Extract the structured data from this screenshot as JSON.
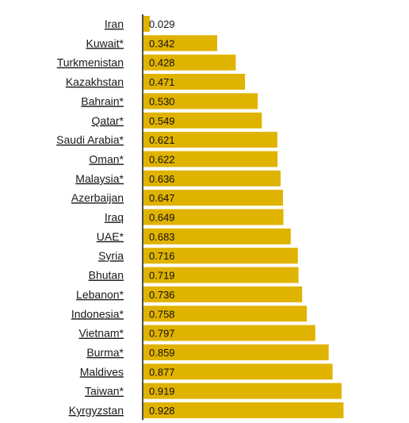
{
  "colors": {
    "bar": "#E0B300",
    "axis": "#111111",
    "text": "#1a1a1a"
  },
  "chart_data": {
    "type": "bar",
    "orientation": "horizontal",
    "categories": [
      "Iran",
      "Kuwait*",
      "Turkmenistan",
      "Kazakhstan",
      "Bahrain*",
      "Qatar*",
      "Saudi Arabia*",
      "Oman*",
      "Malaysia*",
      "Azerbaijan",
      "Iraq",
      "UAE*",
      "Syria",
      "Bhutan",
      "Lebanon*",
      "Indonesia*",
      "Vietnam*",
      "Burma*",
      "Maldives",
      "Taiwan*",
      "Kyrgyzstan"
    ],
    "values": [
      0.029,
      0.342,
      0.428,
      0.471,
      0.53,
      0.549,
      0.621,
      0.622,
      0.636,
      0.647,
      0.649,
      0.683,
      0.716,
      0.719,
      0.736,
      0.758,
      0.797,
      0.859,
      0.877,
      0.919,
      0.928
    ],
    "value_labels": [
      "0.029",
      "0.342",
      "0.428",
      "0.471",
      "0.530",
      "0.549",
      "0.621",
      "0.622",
      "0.636",
      "0.647",
      "0.649",
      "0.683",
      "0.716",
      "0.719",
      "0.736",
      "0.758",
      "0.797",
      "0.859",
      "0.877",
      "0.919",
      "0.928"
    ],
    "xlim": [
      0,
      0.94
    ],
    "grid": false,
    "legend": "none"
  }
}
